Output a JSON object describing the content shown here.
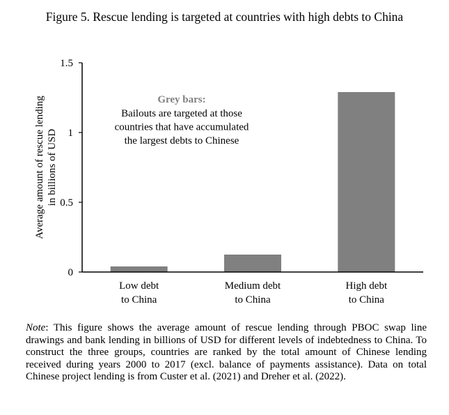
{
  "title": "Figure 5. Rescue lending is targeted at countries with high debts to China",
  "note": {
    "label": "Note",
    "text": ": This figure shows the average amount of rescue lending through PBOC swap line drawings and bank lending in billions of USD for different levels of indebtedness to China. To construct the three groups, countries are ranked by the total amount of Chinese lending received during years 2000 to 2017 (excl. balance of payments assistance). Data on total Chinese project lending is from Custer et al. (2021) and Dreher et al. (2022)."
  },
  "chart_data": {
    "type": "bar",
    "title": "Figure 5. Rescue lending is targeted at countries with high debts to China",
    "ylabel": [
      "Average amount of rescue lending",
      "in billions of USD"
    ],
    "xlabel": "",
    "categories": [
      [
        "Low debt",
        "to China"
      ],
      [
        "Medium debt",
        "to China"
      ],
      [
        "High debt",
        "to China"
      ]
    ],
    "values": [
      0.04,
      0.125,
      1.29
    ],
    "ylim": [
      0,
      1.5
    ],
    "yticks": [
      0,
      0.5,
      1,
      1.5
    ],
    "ytick_labels": [
      "0",
      "0.5",
      "1",
      "1.5"
    ],
    "bar_color": "#808080",
    "grid": false,
    "annotation": {
      "heading": "Grey bars:",
      "lines": [
        "Bailouts are targeted at those",
        "countries that have accumulated",
        "the largest debts to Chinese"
      ]
    }
  }
}
